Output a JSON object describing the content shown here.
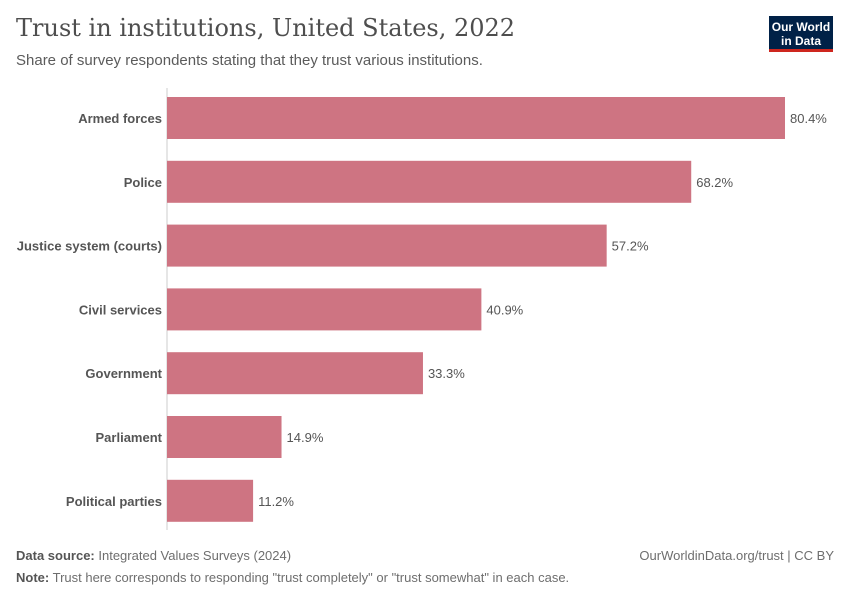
{
  "header": {
    "title": "Trust in institutions, United States, 2022",
    "subtitle": "Share of survey respondents stating that they trust various institutions.",
    "logo": "Our World in Data"
  },
  "chart_data": {
    "type": "bar",
    "orientation": "horizontal",
    "title": "Trust in institutions, United States, 2022",
    "categories": [
      "Armed forces",
      "Police",
      "Justice system (courts)",
      "Civil services",
      "Government",
      "Parliament",
      "Political parties"
    ],
    "values": [
      80.4,
      68.2,
      57.2,
      40.9,
      33.3,
      14.9,
      11.2
    ],
    "unit": "%",
    "color": "#ce7482",
    "xlim": [
      0,
      80.4
    ],
    "grid": false
  },
  "footer": {
    "source_label": "Data source:",
    "source": "Integrated Values Surveys (2024)",
    "url": "OurWorldinData.org/trust | CC BY",
    "note_label": "Note:",
    "note": "Trust here corresponds to responding \"trust completely\" or \"trust somewhat\" in each case."
  }
}
